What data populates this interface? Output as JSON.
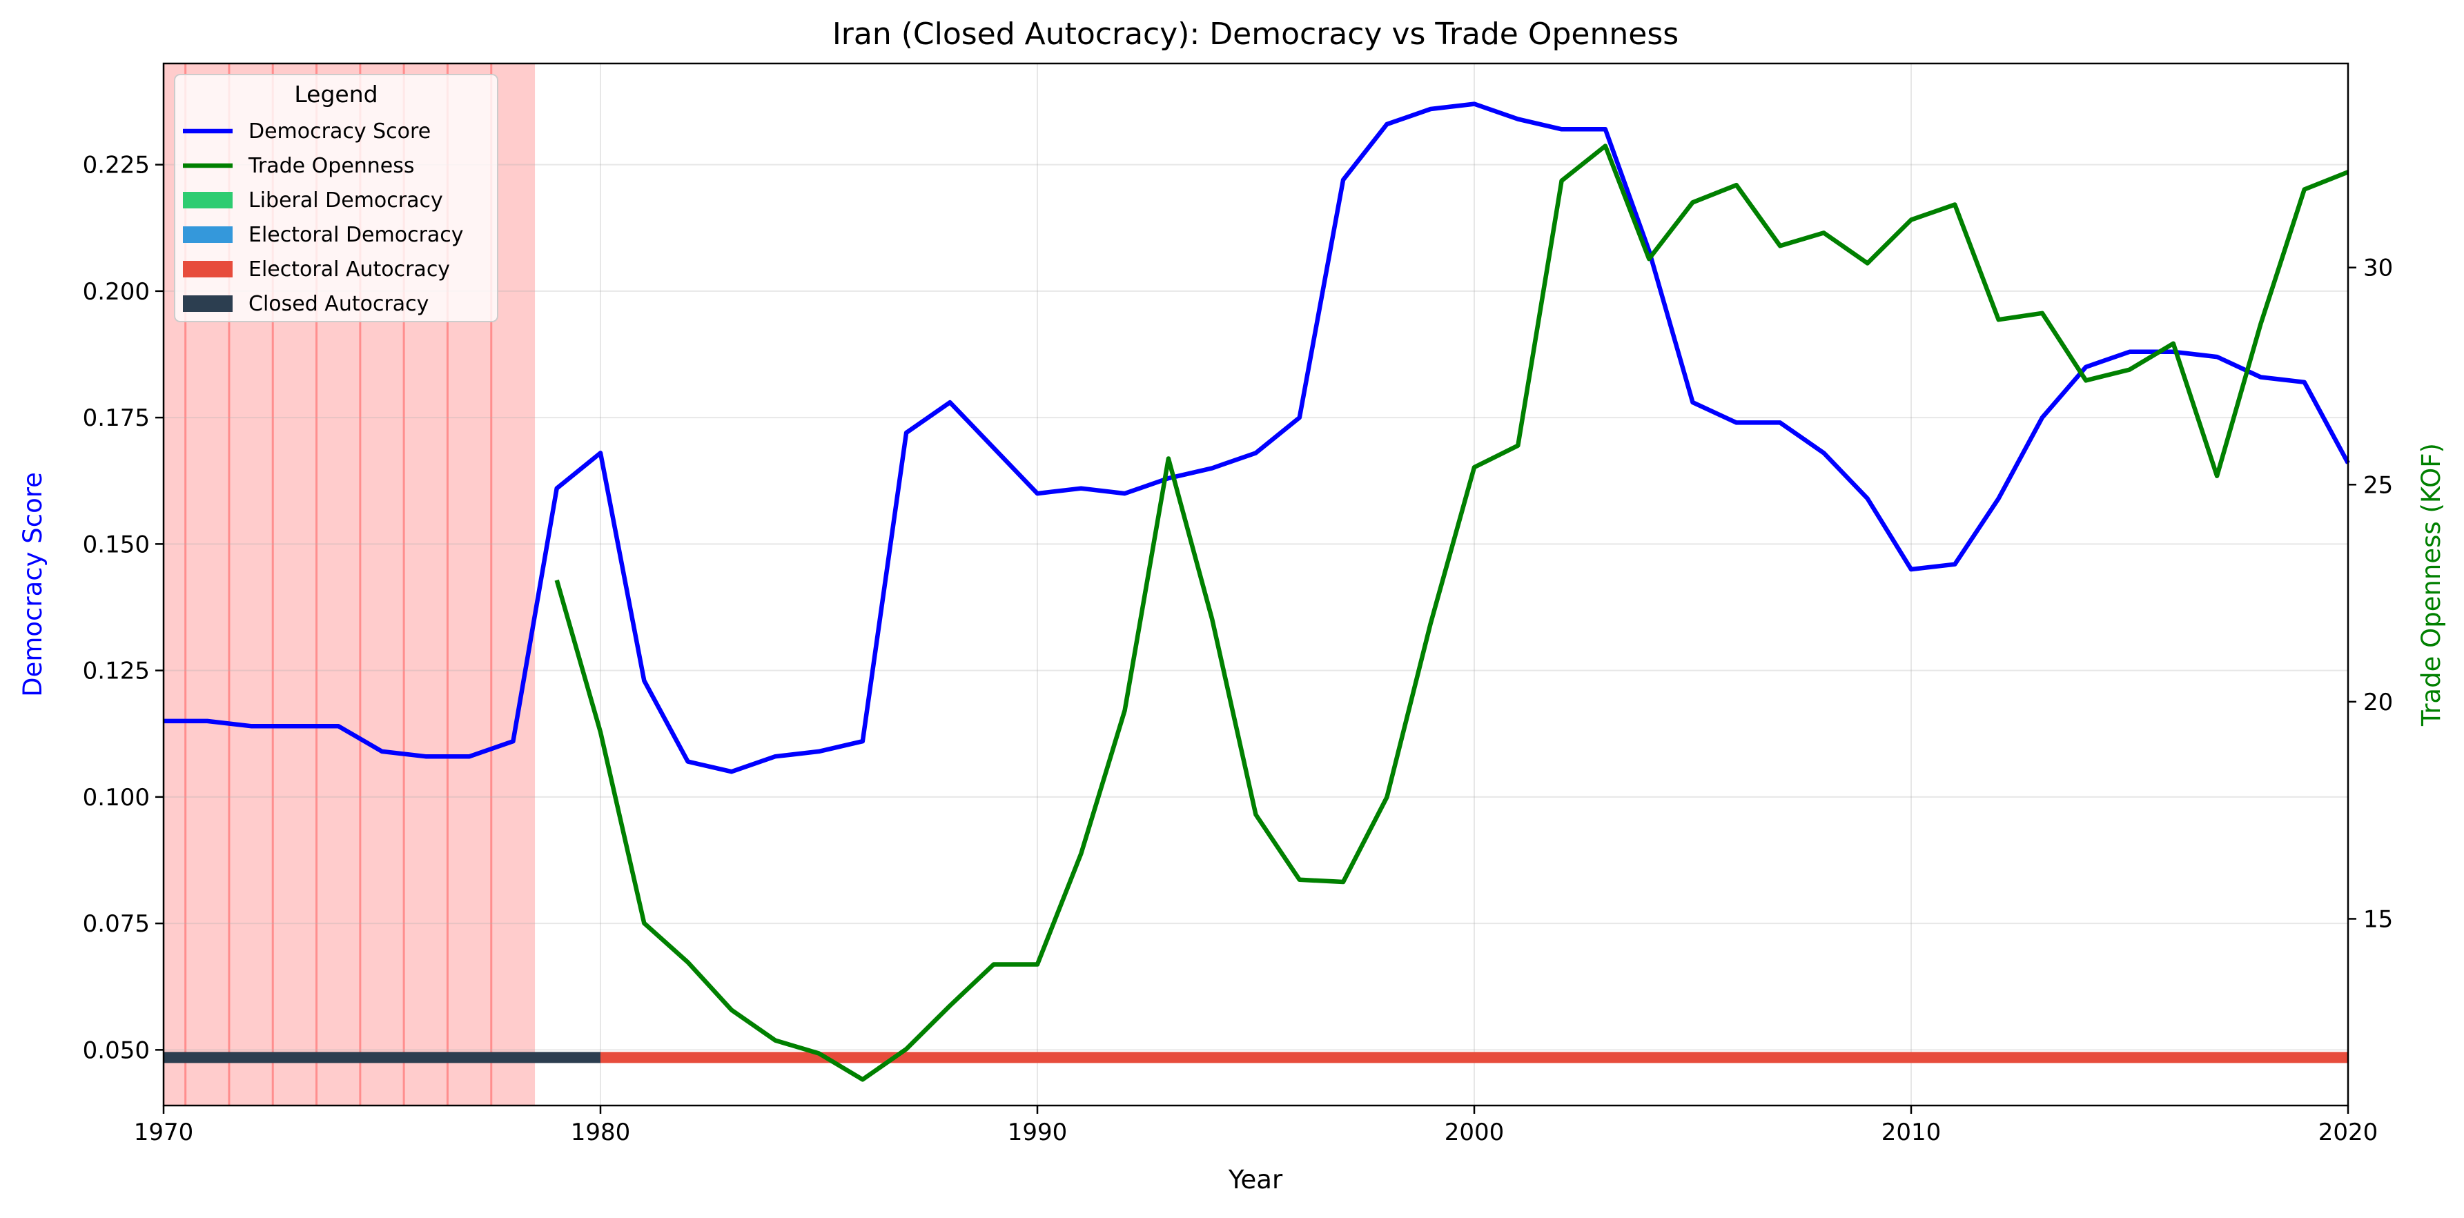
{
  "chart_data": {
    "type": "line",
    "title": "Iran (Closed Autocracy): Democracy vs Trade Openness",
    "xlabel": "Year",
    "ylabel_left": "Democracy Score",
    "ylabel_right": "Trade Openness (KOF)",
    "xlim": [
      1970,
      2020
    ],
    "ylim_left": [
      0.039,
      0.245
    ],
    "ylim_right": [
      10.7,
      34.7
    ],
    "x_ticks": [
      1970,
      1980,
      1990,
      2000,
      2010,
      2020
    ],
    "y_left_ticks": [
      0.05,
      0.075,
      0.1,
      0.125,
      0.15,
      0.175,
      0.2,
      0.225
    ],
    "y_left_tick_labels": [
      "0.050",
      "0.075",
      "0.100",
      "0.125",
      "0.150",
      "0.175",
      "0.200",
      "0.225"
    ],
    "y_right_ticks": [
      15,
      20,
      25,
      30
    ],
    "y_right_tick_labels": [
      "15",
      "20",
      "25",
      "30"
    ],
    "grid": true,
    "legend": {
      "title": "Legend",
      "placement": "top-left",
      "items": [
        {
          "label": "Democracy Score",
          "kind": "line",
          "color": "#0000ff"
        },
        {
          "label": "Trade Openness",
          "kind": "line",
          "color": "#008000"
        },
        {
          "label": "Liberal Democracy",
          "kind": "patch",
          "color": "#2ecc71"
        },
        {
          "label": "Electoral Democracy",
          "kind": "patch",
          "color": "#3498db"
        },
        {
          "label": "Electoral Autocracy",
          "kind": "patch",
          "color": "#e74c3c"
        },
        {
          "label": "Closed Autocracy",
          "kind": "patch",
          "color": "#2c3e50"
        }
      ]
    },
    "shaded_period": {
      "start": 1970,
      "end": 1978.5,
      "color": "#ff0000",
      "yearly_lines": [
        1970.5,
        1971.5,
        1972.5,
        1973.5,
        1974.5,
        1975.5,
        1976.5,
        1977.5
      ]
    },
    "regime_bar": {
      "y": 0.0485,
      "segments": [
        {
          "regime": "Closed Autocracy",
          "start": 1970,
          "end": 1980,
          "color": "#2c3e50"
        },
        {
          "regime": "Electoral Autocracy",
          "start": 1980,
          "end": 2020,
          "color": "#e74c3c"
        }
      ]
    },
    "series": [
      {
        "name": "Democracy Score",
        "axis": "left",
        "color": "#0000ff",
        "x": [
          1970,
          1971,
          1972,
          1973,
          1974,
          1975,
          1976,
          1977,
          1978,
          1979,
          1980,
          1981,
          1982,
          1983,
          1984,
          1985,
          1986,
          1987,
          1988,
          1989,
          1990,
          1991,
          1992,
          1993,
          1994,
          1995,
          1996,
          1997,
          1998,
          1999,
          2000,
          2001,
          2002,
          2003,
          2004,
          2005,
          2006,
          2007,
          2008,
          2009,
          2010,
          2011,
          2012,
          2013,
          2014,
          2015,
          2016,
          2017,
          2018,
          2019,
          2020
        ],
        "values": [
          0.115,
          0.115,
          0.114,
          0.114,
          0.114,
          0.109,
          0.108,
          0.108,
          0.111,
          0.161,
          0.168,
          0.123,
          0.107,
          0.105,
          0.108,
          0.109,
          0.111,
          0.172,
          0.178,
          0.169,
          0.16,
          0.161,
          0.16,
          0.163,
          0.165,
          0.168,
          0.175,
          0.222,
          0.233,
          0.236,
          0.237,
          0.234,
          0.232,
          0.232,
          0.208,
          0.178,
          0.174,
          0.174,
          0.168,
          0.159,
          0.145,
          0.146,
          0.159,
          0.175,
          0.185,
          0.188,
          0.188,
          0.187,
          0.183,
          0.182,
          0.166
        ]
      },
      {
        "name": "Trade Openness",
        "axis": "right",
        "color": "#008000",
        "x": [
          1979,
          1980,
          1981,
          1982,
          1983,
          1984,
          1985,
          1986,
          1987,
          1988,
          1989,
          1990,
          1991,
          1992,
          1993,
          1994,
          1995,
          1996,
          1997,
          1998,
          1999,
          2000,
          2001,
          2002,
          2003,
          2004,
          2005,
          2006,
          2007,
          2008,
          2009,
          2010,
          2011,
          2012,
          2013,
          2014,
          2015,
          2016,
          2017,
          2018,
          2019,
          2020
        ],
        "values": [
          22.8,
          19.3,
          14.9,
          14.0,
          12.9,
          12.2,
          11.9,
          11.3,
          12.0,
          13.0,
          13.95,
          13.95,
          16.5,
          19.8,
          25.6,
          21.9,
          17.4,
          15.9,
          15.85,
          17.8,
          21.8,
          25.4,
          25.9,
          32.0,
          32.8,
          30.2,
          31.5,
          31.9,
          30.5,
          30.8,
          30.1,
          31.1,
          31.45,
          28.8,
          28.95,
          27.4,
          27.65,
          28.25,
          25.2,
          28.7,
          31.8,
          32.2
        ]
      }
    ]
  }
}
